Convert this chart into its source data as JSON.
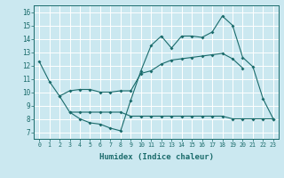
{
  "xlabel": "Humidex (Indice chaleur)",
  "bg_color": "#cbe8f0",
  "line_color": "#1a6b6b",
  "grid_color": "#ffffff",
  "xlim": [
    -0.5,
    23.5
  ],
  "ylim": [
    6.5,
    16.5
  ],
  "xticks": [
    0,
    1,
    2,
    3,
    4,
    5,
    6,
    7,
    8,
    9,
    10,
    11,
    12,
    13,
    14,
    15,
    16,
    17,
    18,
    19,
    20,
    21,
    22,
    23
  ],
  "yticks": [
    7,
    8,
    9,
    10,
    11,
    12,
    13,
    14,
    15,
    16
  ],
  "line1_x": [
    0,
    1,
    2,
    3,
    4,
    5,
    6,
    7,
    8,
    9,
    10,
    11,
    12,
    13,
    14,
    15,
    16,
    17,
    18,
    19,
    20,
    21,
    22,
    23
  ],
  "line1_y": [
    12.3,
    10.8,
    9.7,
    8.5,
    8.0,
    7.7,
    7.6,
    7.3,
    7.1,
    9.4,
    11.6,
    13.5,
    14.2,
    13.3,
    14.2,
    14.2,
    14.1,
    14.5,
    15.7,
    15.0,
    12.6,
    11.9,
    9.5,
    8.0
  ],
  "line2_x": [
    2,
    3,
    4,
    5,
    6,
    7,
    8,
    9,
    10,
    11,
    12,
    13,
    14,
    15,
    16,
    17,
    18,
    19,
    20
  ],
  "line2_y": [
    9.7,
    10.1,
    10.2,
    10.2,
    10.0,
    10.0,
    10.1,
    10.1,
    11.4,
    11.6,
    12.1,
    12.4,
    12.5,
    12.6,
    12.7,
    12.8,
    12.9,
    12.5,
    11.8
  ],
  "line3_x": [
    3,
    4,
    5,
    6,
    7,
    8,
    9,
    10,
    11,
    12,
    13,
    14,
    15,
    16,
    17,
    18,
    19,
    20,
    21,
    22,
    23
  ],
  "line3_y": [
    8.5,
    8.5,
    8.5,
    8.5,
    8.5,
    8.5,
    8.2,
    8.2,
    8.2,
    8.2,
    8.2,
    8.2,
    8.2,
    8.2,
    8.2,
    8.2,
    8.0,
    8.0,
    8.0,
    8.0,
    8.0
  ]
}
